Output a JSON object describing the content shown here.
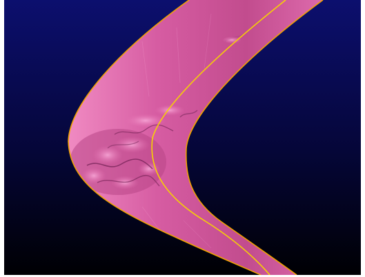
{
  "scene": {
    "background_top_color": "#0c0f6e",
    "background_bottom_color": "#000003",
    "surface_color": "#e56fb0",
    "surface_shadow_color": "#8a2f6a",
    "surface_highlight_color": "#f7a6d6",
    "outline_color": "#f0a400",
    "centerline_color": "#f7d400"
  }
}
